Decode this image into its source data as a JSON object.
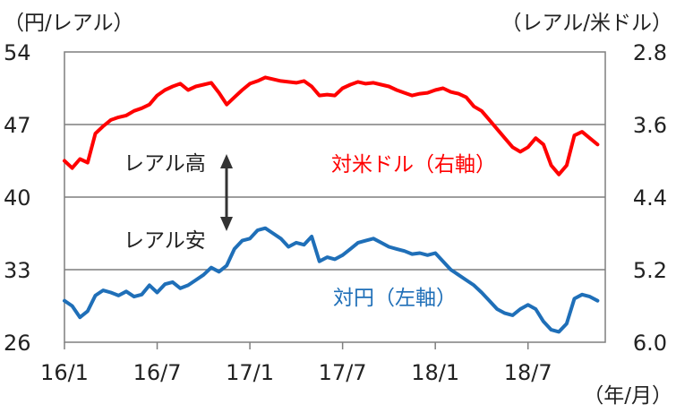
{
  "chart_data": {
    "type": "line",
    "left_axis": {
      "unit": "（円/レアル）",
      "ticks": [
        "54",
        "47",
        "40",
        "33",
        "26"
      ],
      "range": [
        26,
        54
      ]
    },
    "right_axis": {
      "unit": "（レアル/米ドル）",
      "ticks": [
        "2.8",
        "3.6",
        "4.4",
        "5.2",
        "6.0"
      ],
      "range": [
        2.8,
        6.0
      ],
      "inverted": true
    },
    "x_axis": {
      "unit": "（年/月）",
      "ticks": [
        "16/1",
        "16/7",
        "17/1",
        "17/7",
        "18/1",
        "18/7"
      ]
    },
    "annotations": {
      "up": "レアル高",
      "down": "レアル安"
    },
    "series": [
      {
        "name": "対米ドル（右軸）",
        "color": "#ff0000",
        "axis": "right",
        "points": [
          [
            "16/1",
            4.0
          ],
          [
            "16/1.5",
            4.08
          ],
          [
            "16/2",
            3.98
          ],
          [
            "16/2.5",
            4.02
          ],
          [
            "16/3",
            3.7
          ],
          [
            "16/3.5",
            3.62
          ],
          [
            "16/4",
            3.55
          ],
          [
            "16/4.5",
            3.52
          ],
          [
            "16/5",
            3.5
          ],
          [
            "16/5.5",
            3.45
          ],
          [
            "16/6",
            3.42
          ],
          [
            "16/6.5",
            3.38
          ],
          [
            "16/7",
            3.28
          ],
          [
            "16/7.5",
            3.22
          ],
          [
            "16/8",
            3.18
          ],
          [
            "16/8.5",
            3.15
          ],
          [
            "16/9",
            3.22
          ],
          [
            "16/9.5",
            3.18
          ],
          [
            "16/10",
            3.16
          ],
          [
            "16/10.5",
            3.14
          ],
          [
            "16/11",
            3.25
          ],
          [
            "16/11.5",
            3.38
          ],
          [
            "16/12",
            3.3
          ],
          [
            "16/12.5",
            3.22
          ],
          [
            "17/1",
            3.15
          ],
          [
            "17/1.5",
            3.12
          ],
          [
            "17/2",
            3.08
          ],
          [
            "17/2.5",
            3.1
          ],
          [
            "17/3",
            3.12
          ],
          [
            "17/3.5",
            3.13
          ],
          [
            "17/4",
            3.14
          ],
          [
            "17/4.5",
            3.12
          ],
          [
            "17/5",
            3.18
          ],
          [
            "17/5.5",
            3.28
          ],
          [
            "17/6",
            3.27
          ],
          [
            "17/6.5",
            3.28
          ],
          [
            "17/7",
            3.2
          ],
          [
            "17/7.5",
            3.16
          ],
          [
            "17/8",
            3.13
          ],
          [
            "17/8.5",
            3.15
          ],
          [
            "17/9",
            3.14
          ],
          [
            "17/9.5",
            3.16
          ],
          [
            "17/10",
            3.18
          ],
          [
            "17/10.5",
            3.22
          ],
          [
            "17/11",
            3.25
          ],
          [
            "17/11.5",
            3.28
          ],
          [
            "17/12",
            3.26
          ],
          [
            "17/12.5",
            3.25
          ],
          [
            "18/1",
            3.22
          ],
          [
            "18/1.5",
            3.2
          ],
          [
            "18/2",
            3.24
          ],
          [
            "18/2.5",
            3.26
          ],
          [
            "18/3",
            3.3
          ],
          [
            "18/3.5",
            3.4
          ],
          [
            "18/4",
            3.45
          ],
          [
            "18/4.5",
            3.55
          ],
          [
            "18/5",
            3.65
          ],
          [
            "18/5.5",
            3.75
          ],
          [
            "18/6",
            3.85
          ],
          [
            "18/6.5",
            3.9
          ],
          [
            "18/7",
            3.85
          ],
          [
            "18/7.5",
            3.75
          ],
          [
            "18/8",
            3.82
          ],
          [
            "18/8.5",
            4.05
          ],
          [
            "18/9",
            4.15
          ],
          [
            "18/9.5",
            4.05
          ],
          [
            "18/10",
            3.72
          ],
          [
            "18/10.5",
            3.68
          ],
          [
            "18/11",
            3.75
          ],
          [
            "18/11.5",
            3.82
          ]
        ]
      },
      {
        "name": "対円（左軸）",
        "color": "#1f6fb8",
        "axis": "left",
        "points": [
          [
            "16/1",
            30.0
          ],
          [
            "16/1.5",
            29.5
          ],
          [
            "16/2",
            28.4
          ],
          [
            "16/2.5",
            29.0
          ],
          [
            "16/3",
            30.5
          ],
          [
            "16/3.5",
            31.0
          ],
          [
            "16/4",
            30.8
          ],
          [
            "16/4.5",
            30.5
          ],
          [
            "16/5",
            30.9
          ],
          [
            "16/5.5",
            30.4
          ],
          [
            "16/6",
            30.6
          ],
          [
            "16/6.5",
            31.5
          ],
          [
            "16/7",
            30.8
          ],
          [
            "16/7.5",
            31.6
          ],
          [
            "16/8",
            31.8
          ],
          [
            "16/8.5",
            31.2
          ],
          [
            "16/9",
            31.5
          ],
          [
            "16/9.5",
            32.0
          ],
          [
            "16/10",
            32.5
          ],
          [
            "16/10.5",
            33.2
          ],
          [
            "16/11",
            32.8
          ],
          [
            "16/11.5",
            33.4
          ],
          [
            "16/12",
            35.0
          ],
          [
            "16/12.5",
            35.8
          ],
          [
            "17/1",
            36.0
          ],
          [
            "17/1.5",
            36.8
          ],
          [
            "17/2",
            37.0
          ],
          [
            "17/2.5",
            36.5
          ],
          [
            "17/3",
            36.0
          ],
          [
            "17/3.5",
            35.2
          ],
          [
            "17/4",
            35.6
          ],
          [
            "17/4.5",
            35.4
          ],
          [
            "17/5",
            36.2
          ],
          [
            "17/5.5",
            33.8
          ],
          [
            "17/6",
            34.2
          ],
          [
            "17/6.5",
            34.0
          ],
          [
            "17/7",
            34.4
          ],
          [
            "17/7.5",
            35.0
          ],
          [
            "17/8",
            35.6
          ],
          [
            "17/8.5",
            35.8
          ],
          [
            "17/9",
            36.0
          ],
          [
            "17/9.5",
            35.6
          ],
          [
            "17/10",
            35.2
          ],
          [
            "17/10.5",
            35.0
          ],
          [
            "17/11",
            34.8
          ],
          [
            "17/11.5",
            34.5
          ],
          [
            "17/12",
            34.6
          ],
          [
            "17/12.5",
            34.4
          ],
          [
            "18/1",
            34.6
          ],
          [
            "18/1.5",
            33.8
          ],
          [
            "18/2",
            33.0
          ],
          [
            "18/2.5",
            32.5
          ],
          [
            "18/3",
            32.0
          ],
          [
            "18/3.5",
            31.5
          ],
          [
            "18/4",
            30.8
          ],
          [
            "18/4.5",
            30.0
          ],
          [
            "18/5",
            29.2
          ],
          [
            "18/5.5",
            28.8
          ],
          [
            "18/6",
            28.6
          ],
          [
            "18/6.5",
            29.2
          ],
          [
            "18/7",
            29.6
          ],
          [
            "18/7.5",
            29.2
          ],
          [
            "18/8",
            28.0
          ],
          [
            "18/8.5",
            27.2
          ],
          [
            "18/9",
            27.0
          ],
          [
            "18/9.5",
            27.8
          ],
          [
            "18/10",
            30.2
          ],
          [
            "18/10.5",
            30.6
          ],
          [
            "18/11",
            30.4
          ],
          [
            "18/11.5",
            30.0
          ]
        ]
      }
    ]
  }
}
